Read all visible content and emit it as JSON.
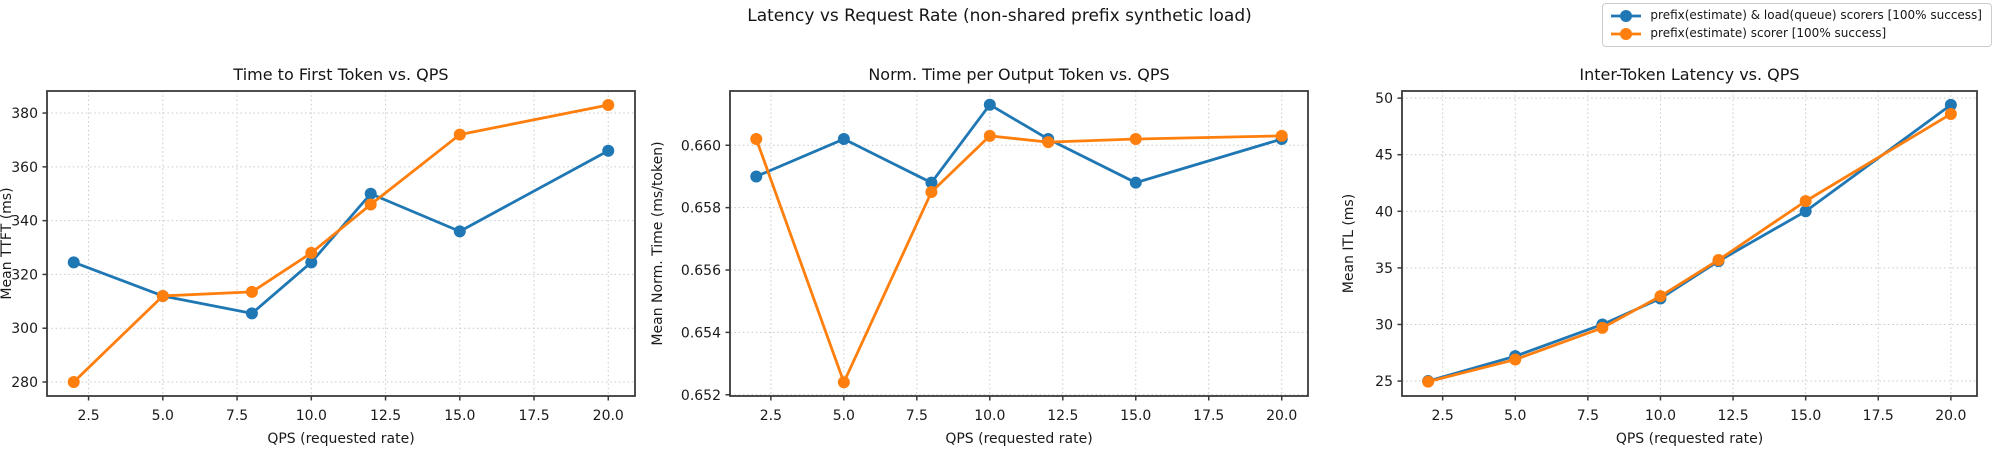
{
  "figure": {
    "suptitle": "Latency vs Request Rate (non-shared prefix synthetic load)",
    "background": "#ffffff"
  },
  "colors": {
    "series_blue": "#1f77b4",
    "series_orange": "#ff7f0e",
    "grid": "#c9c9c9",
    "spine": "#3a3a3a",
    "text": "#1a1a1a"
  },
  "legend": {
    "position": "figure-top-right",
    "entries": [
      {
        "label": "prefix(estimate) & load(queue) scorers [100% success]",
        "color": "#1f77b4",
        "marker": "circle-on-line"
      },
      {
        "label": "prefix(estimate) scorer [100% success]",
        "color": "#ff7f0e",
        "marker": "circle-on-line"
      }
    ]
  },
  "chart_data": [
    {
      "type": "line",
      "title": "Time to First Token vs. QPS",
      "xlabel": "QPS (requested rate)",
      "ylabel": "Mean TTFT (ms)",
      "grid": true,
      "x": [
        2,
        5,
        8,
        10,
        12,
        15,
        20
      ],
      "xlim": [
        1.1,
        20.9
      ],
      "ylim": [
        274.8,
        388.2
      ],
      "xticks": [
        {
          "v": 2.5,
          "label": "2.5"
        },
        {
          "v": 5,
          "label": "5.0"
        },
        {
          "v": 7.5,
          "label": "7.5"
        },
        {
          "v": 10,
          "label": "10.0"
        },
        {
          "v": 12.5,
          "label": "12.5"
        },
        {
          "v": 15,
          "label": "15.0"
        },
        {
          "v": 17.5,
          "label": "17.5"
        },
        {
          "v": 20,
          "label": "20.0"
        }
      ],
      "yticks": [
        {
          "v": 280,
          "label": "280"
        },
        {
          "v": 300,
          "label": "300"
        },
        {
          "v": 320,
          "label": "320"
        },
        {
          "v": 340,
          "label": "340"
        },
        {
          "v": 360,
          "label": "360"
        },
        {
          "v": 380,
          "label": "380"
        }
      ],
      "series": [
        {
          "name": "prefix(estimate) & load(queue) scorers [100% success]",
          "color": "#1f77b4",
          "values": [
            324.5,
            312,
            305.5,
            324.5,
            350,
            336,
            366
          ]
        },
        {
          "name": "prefix(estimate) scorer [100% success]",
          "color": "#ff7f0e",
          "values": [
            280,
            312,
            313.5,
            328,
            346,
            372,
            383
          ]
        }
      ]
    },
    {
      "type": "line",
      "title": "Norm. Time per Output Token vs. QPS",
      "xlabel": "QPS (requested rate)",
      "ylabel": "Mean Norm. Time (ms/token)",
      "grid": true,
      "x": [
        2,
        5,
        8,
        10,
        12,
        15,
        20
      ],
      "xlim": [
        1.1,
        20.9
      ],
      "ylim": [
        0.65196,
        0.66174
      ],
      "xticks": [
        {
          "v": 2.5,
          "label": "2.5"
        },
        {
          "v": 5,
          "label": "5.0"
        },
        {
          "v": 7.5,
          "label": "7.5"
        },
        {
          "v": 10,
          "label": "10.0"
        },
        {
          "v": 12.5,
          "label": "12.5"
        },
        {
          "v": 15,
          "label": "15.0"
        },
        {
          "v": 17.5,
          "label": "17.5"
        },
        {
          "v": 20,
          "label": "20.0"
        }
      ],
      "yticks": [
        {
          "v": 0.652,
          "label": "0.652"
        },
        {
          "v": 0.654,
          "label": "0.654"
        },
        {
          "v": 0.656,
          "label": "0.656"
        },
        {
          "v": 0.658,
          "label": "0.658"
        },
        {
          "v": 0.66,
          "label": "0.660"
        }
      ],
      "series": [
        {
          "name": "prefix(estimate) & load(queue) scorers [100% success]",
          "color": "#1f77b4",
          "values": [
            0.659,
            0.6602,
            0.6588,
            0.6613,
            0.6602,
            0.6588,
            0.6602
          ]
        },
        {
          "name": "prefix(estimate) scorer [100% success]",
          "color": "#ff7f0e",
          "values": [
            0.6602,
            0.6524,
            0.6585,
            0.6603,
            0.6601,
            0.6602,
            0.6603
          ]
        }
      ]
    },
    {
      "type": "line",
      "title": "Inter-Token Latency vs. QPS",
      "xlabel": "QPS (requested rate)",
      "ylabel": "Mean ITL (ms)",
      "grid": true,
      "x": [
        2,
        5,
        8,
        10,
        12,
        15,
        20
      ],
      "xlim": [
        1.1,
        20.9
      ],
      "ylim": [
        23.68,
        50.63
      ],
      "xticks": [
        {
          "v": 2.5,
          "label": "2.5"
        },
        {
          "v": 5,
          "label": "5.0"
        },
        {
          "v": 7.5,
          "label": "7.5"
        },
        {
          "v": 10,
          "label": "10.0"
        },
        {
          "v": 12.5,
          "label": "12.5"
        },
        {
          "v": 15,
          "label": "15.0"
        },
        {
          "v": 17.5,
          "label": "17.5"
        },
        {
          "v": 20,
          "label": "20.0"
        }
      ],
      "yticks": [
        {
          "v": 25,
          "label": "25"
        },
        {
          "v": 30,
          "label": "30"
        },
        {
          "v": 35,
          "label": "35"
        },
        {
          "v": 40,
          "label": "40"
        },
        {
          "v": 45,
          "label": "45"
        },
        {
          "v": 50,
          "label": "50"
        }
      ],
      "series": [
        {
          "name": "prefix(estimate) & load(queue) scorers [100% success]",
          "color": "#1f77b4",
          "values": [
            25.0,
            27.2,
            30.0,
            32.3,
            35.6,
            40.0,
            49.4
          ]
        },
        {
          "name": "prefix(estimate) scorer [100% success]",
          "color": "#ff7f0e",
          "values": [
            24.95,
            26.9,
            29.7,
            32.5,
            35.7,
            40.9,
            48.6
          ]
        }
      ]
    }
  ]
}
